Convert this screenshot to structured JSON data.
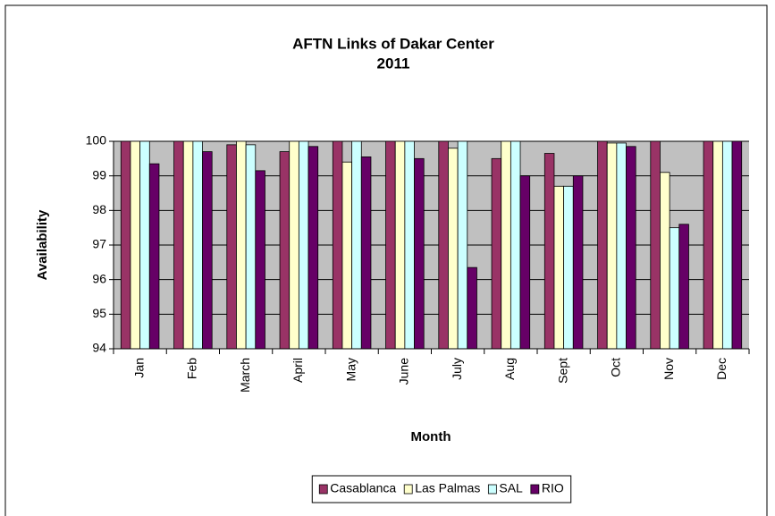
{
  "chart_data": {
    "type": "bar",
    "title": "AFTN Links of Dakar Center",
    "subtitle": "2011",
    "x_label": "Month",
    "y_label": "Availability",
    "categories": [
      "Jan",
      "Feb",
      "March",
      "April",
      "May",
      "June",
      "July",
      "Aug",
      "Sept",
      "Oct",
      "Nov",
      "Dec"
    ],
    "series": [
      {
        "name": "Casablanca",
        "color": "#993366",
        "values": [
          100,
          100,
          99.9,
          99.7,
          100,
          100,
          100,
          99.5,
          99.65,
          100,
          100,
          100
        ]
      },
      {
        "name": "Las Palmas",
        "color": "#ffffcc",
        "values": [
          100,
          100,
          100,
          100,
          99.4,
          100,
          99.8,
          100,
          98.7,
          99.95,
          99.1,
          100
        ]
      },
      {
        "name": "SAL",
        "color": "#ccffff",
        "values": [
          100,
          100,
          99.9,
          100,
          100,
          100,
          100,
          100,
          98.7,
          99.95,
          97.5,
          100
        ]
      },
      {
        "name": "RIO",
        "color": "#660066",
        "values": [
          99.35,
          99.7,
          99.15,
          99.85,
          99.55,
          99.5,
          96.35,
          99.0,
          99.0,
          99.85,
          97.6,
          100
        ]
      }
    ],
    "ylim": [
      94,
      100
    ],
    "yticks": [
      94,
      95,
      96,
      97,
      98,
      99,
      100
    ],
    "grid": true,
    "legend": "bottom",
    "plot_background": "#c0c0c0"
  }
}
